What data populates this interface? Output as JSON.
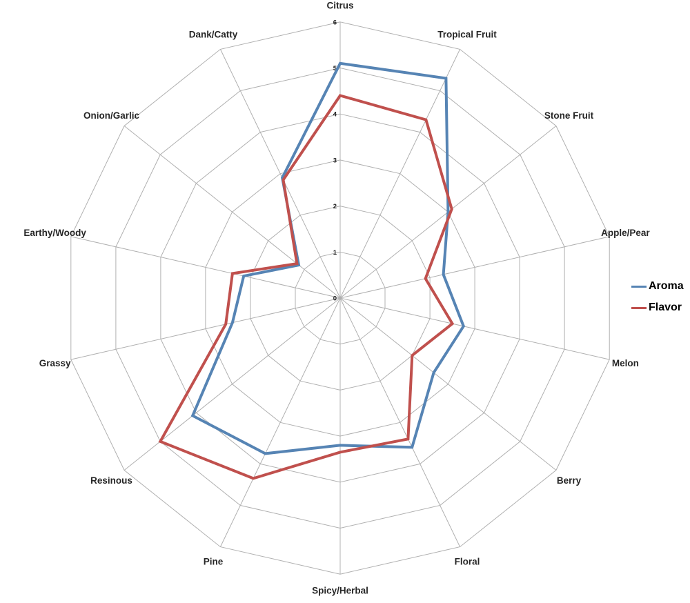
{
  "chart_data": {
    "type": "radar",
    "title": "",
    "categories": [
      "Citrus",
      "Tropical Fruit",
      "Stone Fruit",
      "Apple/Pear",
      "Melon",
      "Berry",
      "Floral",
      "Spicy/Herbal",
      "Pine",
      "Resinous",
      "Grassy",
      "Earthy/Woody",
      "Onion/Garlic",
      "Dank/Catty"
    ],
    "series": [
      {
        "name": "Aroma",
        "color": "#5684b4",
        "values": [
          5.1,
          5.3,
          3.0,
          2.3,
          2.75,
          2.6,
          3.6,
          3.2,
          3.75,
          4.1,
          2.4,
          2.15,
          1.15,
          2.9
        ]
      },
      {
        "name": "Flavor",
        "color": "#c0504d",
        "values": [
          4.4,
          4.3,
          3.1,
          1.9,
          2.5,
          2.0,
          3.4,
          3.35,
          4.35,
          5.0,
          2.55,
          2.4,
          1.2,
          2.85
        ]
      }
    ],
    "ticks": [
      "0",
      "1",
      "2",
      "3",
      "4",
      "5",
      "6"
    ],
    "rmin": 0,
    "rmax": 6,
    "grid": true,
    "grid_shape": "polygon",
    "grid_color": "#b0b0b0",
    "label_color": "#262626",
    "legend_position": "right"
  },
  "legend": {
    "items": [
      {
        "label": "Aroma",
        "color": "#5684b4"
      },
      {
        "label": "Flavor",
        "color": "#c0504d"
      }
    ]
  }
}
